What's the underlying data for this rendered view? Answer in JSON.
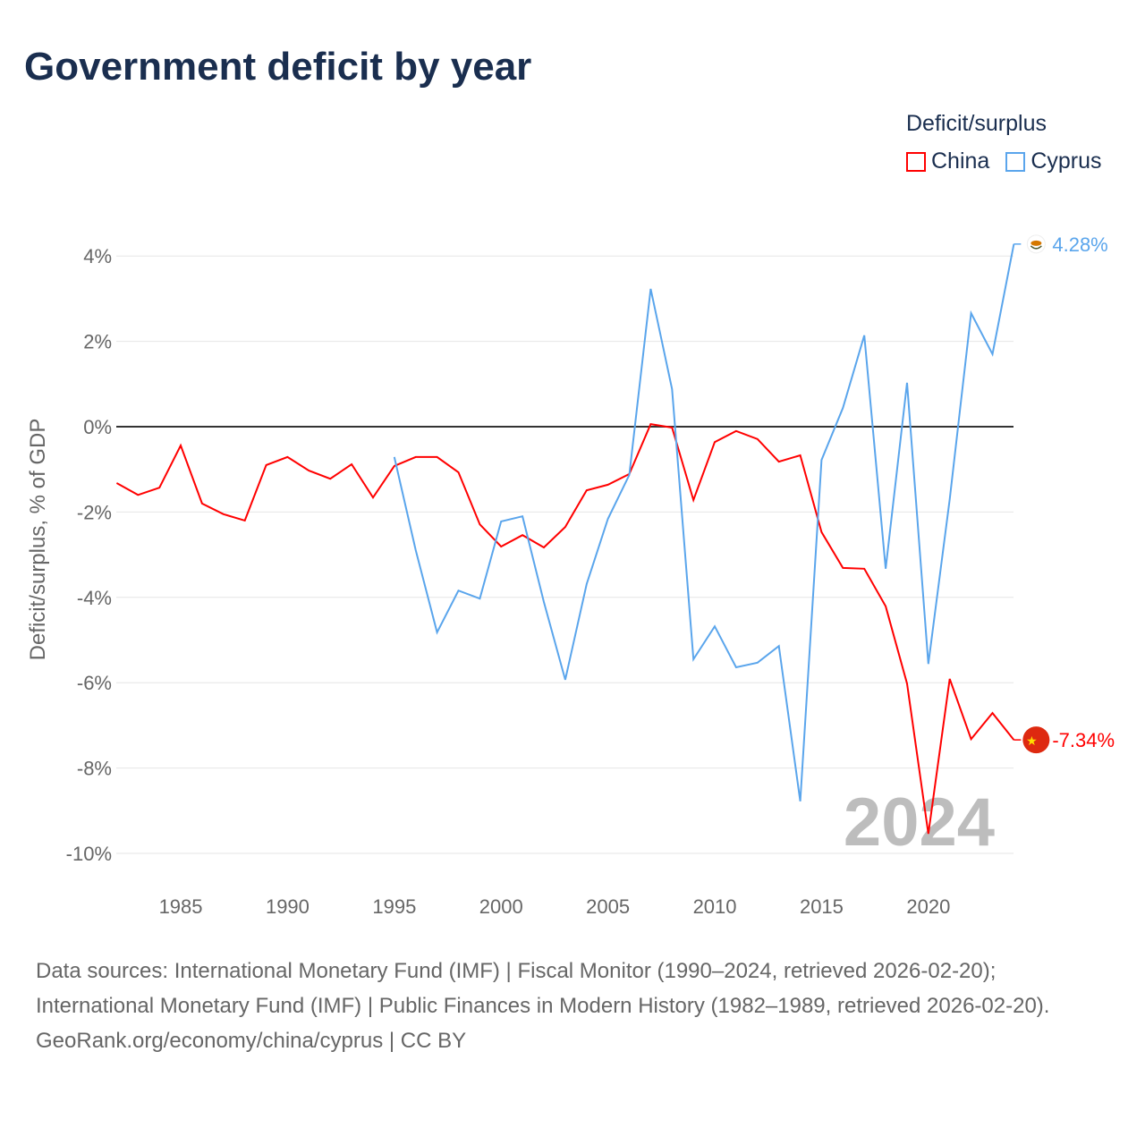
{
  "title": "Government deficit by year",
  "legend": {
    "title": "Deficit/surplus",
    "items": [
      {
        "name": "China",
        "color": "#ff0000"
      },
      {
        "name": "Cyprus",
        "color": "#5aa5ec"
      }
    ]
  },
  "footer": {
    "sources": "Data sources: International Monetary Fund (IMF) | Fiscal Monitor (1990–2024, retrieved 2026-02-20); International Monetary Fund (IMF) | Public Finances in Modern History (1982–1989, retrieved 2026-02-20).",
    "credit": "GeoRank.org/economy/china/cyprus | CC BY"
  },
  "chart_data": {
    "type": "line",
    "title": "Government deficit by year",
    "ylabel": "Deficit/surplus, % of GDP",
    "xlabel": "",
    "xlim": [
      1982,
      2024
    ],
    "ylim": [
      -10.6,
      4.6
    ],
    "yticks": [
      4,
      2,
      0,
      -2,
      -4,
      -6,
      -8,
      -10
    ],
    "ytick_labels": [
      "4%",
      "2%",
      "0%",
      "-2%",
      "-4%",
      "-6%",
      "-8%",
      "-10%"
    ],
    "xticks": [
      1985,
      1990,
      1995,
      2000,
      2005,
      2010,
      2015,
      2020
    ],
    "xtick_labels": [
      "1985",
      "1990",
      "1995",
      "2000",
      "2005",
      "2010",
      "2015",
      "2020"
    ],
    "year_watermark": "2024",
    "grid": true,
    "legend_position": "top-right",
    "series": [
      {
        "name": "China",
        "color": "#ff0000",
        "end_label": "-7.34%",
        "flag": "china",
        "x": [
          1982,
          1983,
          1984,
          1985,
          1986,
          1987,
          1988,
          1989,
          1990,
          1991,
          1992,
          1993,
          1994,
          1995,
          1996,
          1997,
          1998,
          1999,
          2000,
          2001,
          2002,
          2003,
          2004,
          2005,
          2006,
          2007,
          2008,
          2009,
          2010,
          2011,
          2012,
          2013,
          2014,
          2015,
          2016,
          2017,
          2018,
          2019,
          2020,
          2021,
          2022,
          2023,
          2024
        ],
        "values": [
          -1.32,
          -1.6,
          -1.43,
          -0.44,
          -1.8,
          -2.05,
          -2.2,
          -0.9,
          -0.71,
          -1.03,
          -1.22,
          -0.88,
          -1.66,
          -0.92,
          -0.71,
          -0.71,
          -1.07,
          -2.29,
          -2.81,
          -2.54,
          -2.83,
          -2.35,
          -1.49,
          -1.36,
          -1.11,
          0.06,
          -0.02,
          -1.72,
          -0.36,
          -0.1,
          -0.29,
          -0.82,
          -0.67,
          -2.47,
          -3.31,
          -3.33,
          -4.21,
          -6.02,
          -9.54,
          -5.91,
          -7.32,
          -6.71,
          -7.34
        ]
      },
      {
        "name": "Cyprus",
        "color": "#5aa5ec",
        "end_label": "4.28%",
        "flag": "cyprus",
        "x": [
          1995,
          1996,
          1997,
          1998,
          1999,
          2000,
          2001,
          2002,
          2003,
          2004,
          2005,
          2006,
          2007,
          2008,
          2009,
          2010,
          2011,
          2012,
          2013,
          2014,
          2015,
          2016,
          2017,
          2018,
          2019,
          2020,
          2021,
          2022,
          2023,
          2024
        ],
        "values": [
          -0.71,
          -2.89,
          -4.82,
          -3.84,
          -4.03,
          -2.22,
          -2.1,
          -4.11,
          -5.93,
          -3.69,
          -2.16,
          -1.13,
          3.23,
          0.88,
          -5.45,
          -4.68,
          -5.64,
          -5.53,
          -5.14,
          -8.78,
          -0.78,
          0.44,
          2.14,
          -3.33,
          1.03,
          -5.56,
          -1.7,
          2.66,
          1.7,
          4.28
        ]
      }
    ]
  }
}
